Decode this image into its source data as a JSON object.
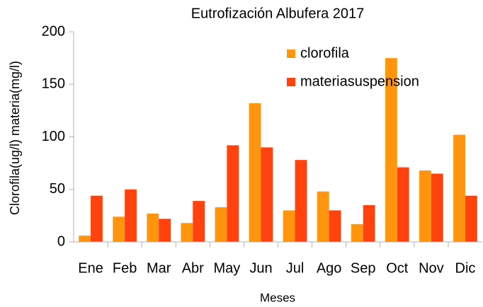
{
  "chart_data": {
    "type": "bar",
    "title": "Eutrofización Albufera 2017",
    "x_label": "Meses",
    "y_label": "Clorofila(ug/l) materia(mg/l)",
    "categories": [
      "Ene",
      "Feb",
      "Mar",
      "Abr",
      "May",
      "Jun",
      "Jul",
      "Ago",
      "Sep",
      "Oct",
      "Nov",
      "Dic"
    ],
    "series": [
      {
        "name": "clorofila",
        "color": "#ff950e",
        "values": [
          6,
          24,
          27,
          18,
          33,
          132,
          30,
          48,
          17,
          175,
          68,
          102
        ]
      },
      {
        "name": "materiasuspension",
        "color": "#ff420e",
        "values": [
          44,
          50,
          22,
          39,
          92,
          90,
          78,
          30,
          35,
          71,
          65,
          44
        ]
      }
    ],
    "ylim": [
      0,
      200
    ],
    "yticks": [
      0,
      50,
      100,
      150,
      200
    ],
    "grid": false
  }
}
